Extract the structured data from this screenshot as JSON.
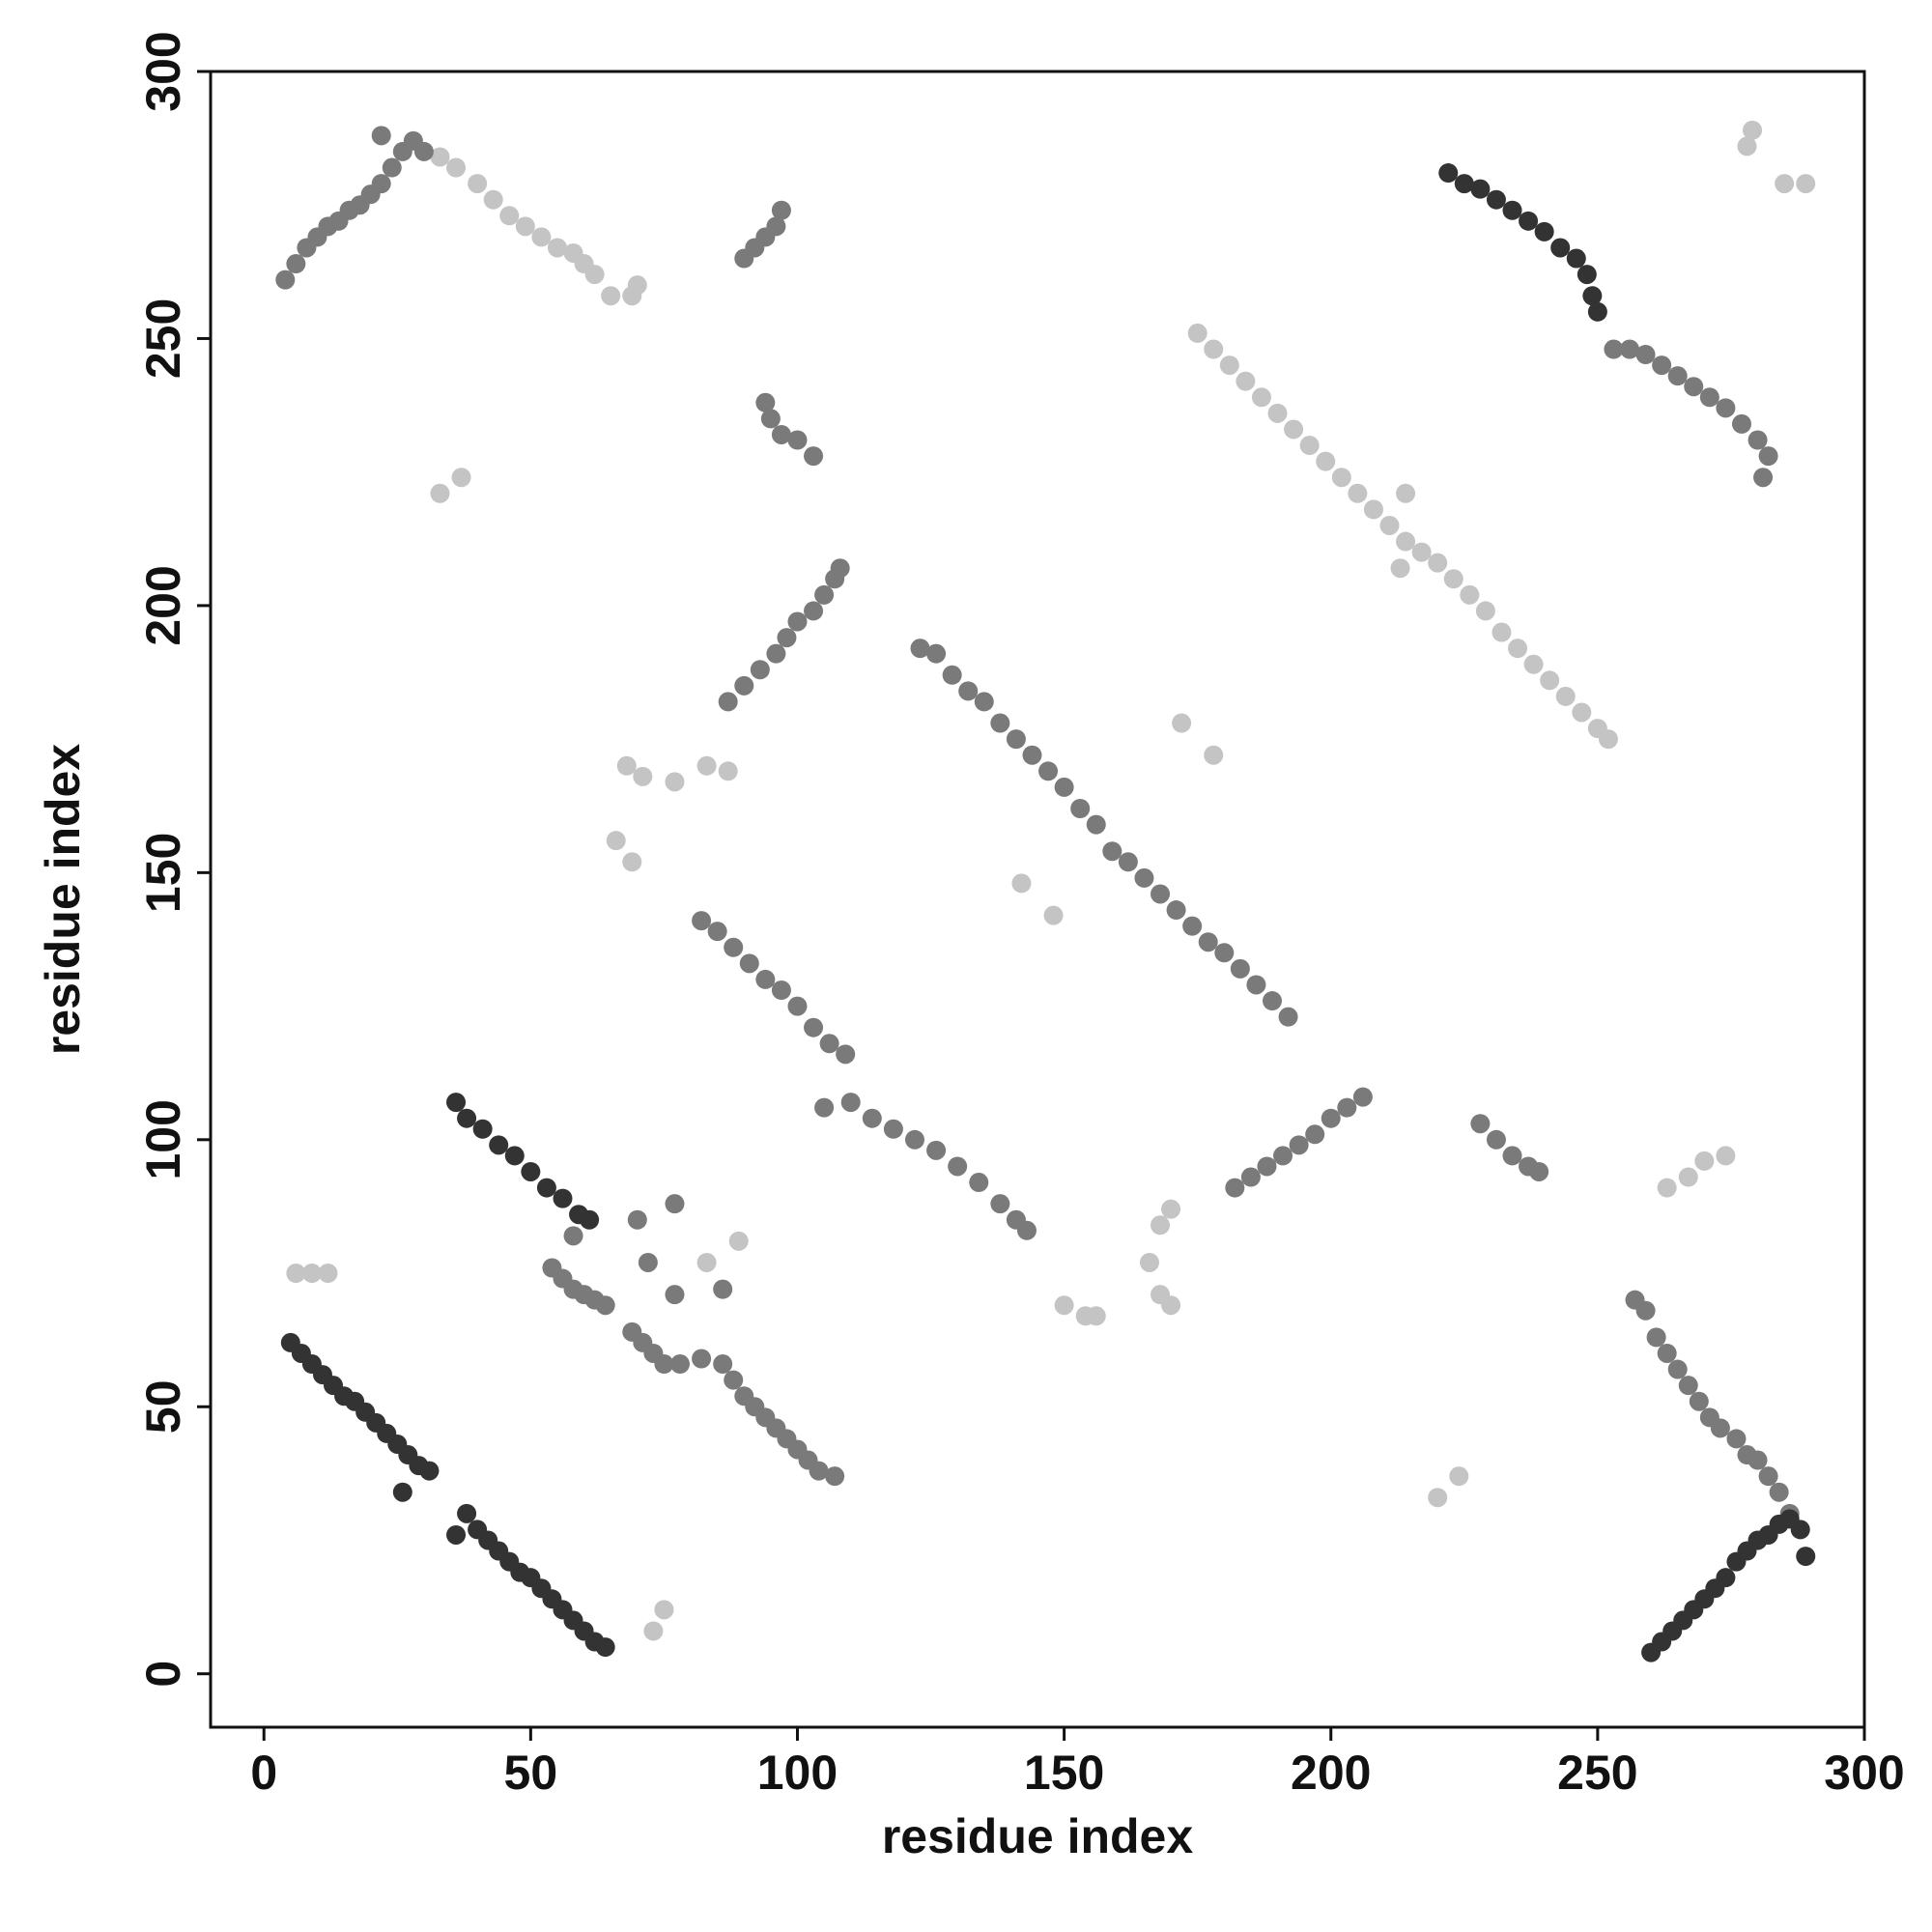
{
  "chart_data": {
    "type": "scatter",
    "xlabel": "residue index",
    "ylabel": "residue index",
    "xlim": [
      -10,
      300
    ],
    "ylim": [
      -10,
      300
    ],
    "xticks": [
      0,
      50,
      100,
      150,
      200,
      250,
      300
    ],
    "yticks": [
      0,
      50,
      100,
      150,
      200,
      250,
      300
    ],
    "grid": false,
    "series": [
      {
        "color": "#c4c4c4",
        "x": [
          33,
          36,
          40,
          43,
          46,
          49,
          52,
          55,
          58,
          60,
          62,
          65,
          69,
          70,
          33,
          37,
          68,
          71,
          77,
          83,
          87,
          66,
          69,
          172,
          178,
          142,
          148,
          263,
          267,
          270,
          274,
          83,
          89,
          6,
          9,
          12,
          73,
          75,
          150,
          154,
          156,
          168,
          170,
          166,
          168,
          170,
          175,
          178,
          181,
          184,
          187,
          190,
          193,
          196,
          199,
          202,
          205,
          208,
          211,
          214,
          217,
          220,
          223,
          226,
          229,
          232,
          235,
          238,
          241,
          244,
          247,
          250,
          252,
          214,
          213,
          279,
          278,
          285,
          289,
          220,
          224
        ],
        "values": [
          284,
          282,
          279,
          276,
          273,
          271,
          269,
          267,
          266,
          264,
          262,
          258,
          258,
          260,
          221,
          224,
          170,
          168,
          167,
          170,
          169,
          156,
          152,
          178,
          172,
          148,
          142,
          91,
          93,
          96,
          97,
          77,
          81,
          75,
          75,
          75,
          8,
          12,
          69,
          67,
          67,
          84,
          87,
          77,
          71,
          69,
          251,
          248,
          245,
          242,
          239,
          236,
          233,
          230,
          227,
          224,
          221,
          218,
          215,
          212,
          210,
          208,
          205,
          202,
          199,
          195,
          192,
          189,
          186,
          183,
          180,
          177,
          175,
          221,
          207,
          289,
          286,
          279,
          279,
          33,
          37
        ]
      },
      {
        "color": "#7a7a7a",
        "x": [
          4,
          6,
          8,
          10,
          12,
          14,
          16,
          18,
          20,
          22,
          24,
          26,
          28,
          22,
          30,
          87,
          90,
          93,
          96,
          98,
          100,
          103,
          105,
          107,
          108,
          123,
          126,
          129,
          132,
          135,
          138,
          141,
          144,
          147,
          150,
          153,
          156,
          159,
          162,
          165,
          168,
          171,
          174,
          177,
          180,
          183,
          186,
          189,
          192,
          82,
          85,
          88,
          91,
          94,
          97,
          100,
          103,
          106,
          109,
          105,
          110,
          114,
          118,
          122,
          126,
          130,
          134,
          138,
          141,
          143,
          182,
          185,
          188,
          191,
          194,
          197,
          200,
          203,
          206,
          54,
          56,
          58,
          60,
          62,
          64,
          58,
          69,
          71,
          73,
          75,
          78,
          82,
          86,
          88,
          90,
          92,
          94,
          96,
          98,
          100,
          102,
          104,
          107,
          253,
          256,
          259,
          262,
          265,
          268,
          271,
          274,
          277,
          280,
          282,
          281,
          257,
          259,
          261,
          263,
          265,
          267,
          269,
          271,
          273,
          276,
          278,
          280,
          282,
          284,
          286,
          90,
          92,
          94,
          96,
          97,
          94,
          95,
          97,
          100,
          103,
          228,
          231,
          234,
          237,
          239,
          70,
          77,
          72,
          77,
          86
        ],
        "values": [
          261,
          264,
          267,
          269,
          271,
          272,
          274,
          275,
          277,
          279,
          282,
          285,
          287,
          288,
          285,
          182,
          185,
          188,
          191,
          194,
          197,
          199,
          202,
          205,
          207,
          192,
          191,
          187,
          184,
          182,
          178,
          175,
          172,
          169,
          166,
          162,
          159,
          154,
          152,
          149,
          146,
          143,
          140,
          137,
          135,
          132,
          129,
          126,
          123,
          141,
          139,
          136,
          133,
          130,
          128,
          125,
          121,
          118,
          116,
          106,
          107,
          104,
          102,
          100,
          98,
          95,
          92,
          88,
          85,
          83,
          91,
          93,
          95,
          97,
          99,
          101,
          104,
          106,
          108,
          76,
          74,
          72,
          71,
          70,
          69,
          82,
          64,
          62,
          60,
          58,
          58,
          59,
          58,
          55,
          52,
          50,
          48,
          46,
          44,
          42,
          40,
          38,
          37,
          248,
          248,
          247,
          245,
          243,
          241,
          239,
          237,
          234,
          231,
          228,
          224,
          70,
          68,
          63,
          60,
          57,
          54,
          51,
          48,
          46,
          44,
          41,
          40,
          37,
          34,
          30,
          265,
          267,
          269,
          271,
          274,
          238,
          235,
          232,
          231,
          228,
          103,
          100,
          97,
          95,
          94,
          85,
          88,
          77,
          71,
          72
        ]
      },
      {
        "color": "#333333",
        "x": [
          36,
          38,
          41,
          44,
          47,
          50,
          53,
          56,
          59,
          61,
          5,
          7,
          9,
          11,
          13,
          15,
          17,
          19,
          21,
          23,
          25,
          27,
          29,
          31,
          26,
          36,
          38,
          40,
          42,
          44,
          46,
          48,
          50,
          52,
          54,
          56,
          58,
          60,
          62,
          64,
          222,
          225,
          228,
          231,
          234,
          237,
          240,
          243,
          246,
          248,
          249,
          250,
          260,
          262,
          264,
          266,
          268,
          270,
          272,
          274,
          276,
          278,
          280,
          282,
          284,
          286,
          288,
          289
        ],
        "values": [
          107,
          104,
          102,
          99,
          97,
          94,
          91,
          89,
          86,
          85,
          62,
          60,
          58,
          56,
          54,
          52,
          51,
          49,
          47,
          45,
          43,
          41,
          39,
          38,
          34,
          26,
          30,
          27,
          25,
          23,
          21,
          19,
          18,
          16,
          14,
          12,
          10,
          8,
          6,
          5,
          281,
          279,
          278,
          276,
          274,
          272,
          270,
          267,
          265,
          262,
          258,
          255,
          4,
          6,
          8,
          10,
          12,
          14,
          16,
          18,
          21,
          23,
          25,
          26,
          28,
          29,
          27,
          22
        ]
      }
    ]
  }
}
